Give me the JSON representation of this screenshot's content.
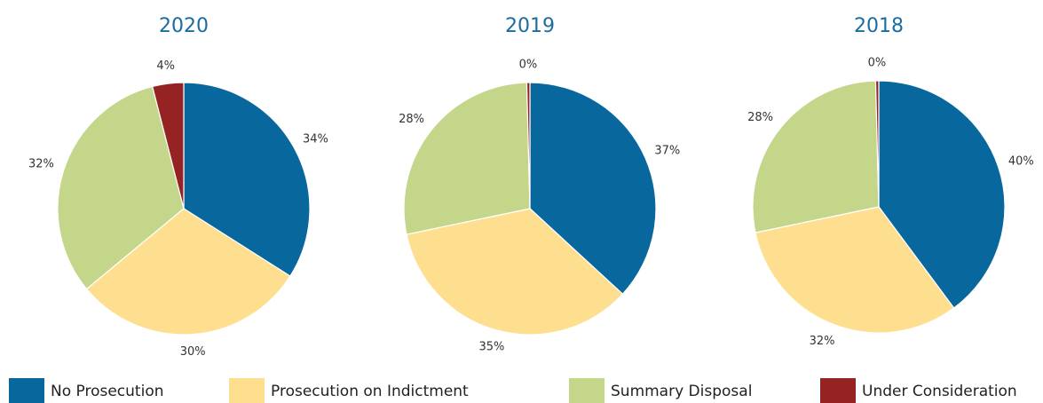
{
  "chart_data": [
    {
      "type": "pie",
      "title": "2020",
      "categories": [
        "No Prosecution",
        "Prosecution on Indictment",
        "Summary Disposal",
        "Under Consideration"
      ],
      "values": [
        34,
        30,
        32,
        4
      ],
      "value_labels": [
        "34%",
        "30%",
        "32%",
        "4%"
      ],
      "colors": [
        "#08679c",
        "#fddf8f",
        "#c3d68a",
        "#962323"
      ]
    },
    {
      "type": "pie",
      "title": "2019",
      "categories": [
        "No Prosecution",
        "Prosecution on Indictment",
        "Summary Disposal",
        "Under Consideration"
      ],
      "values": [
        37,
        35,
        28,
        0.4
      ],
      "value_labels": [
        "37%",
        "35%",
        "28%",
        "0%"
      ],
      "colors": [
        "#08679c",
        "#fddf8f",
        "#c3d68a",
        "#962323"
      ]
    },
    {
      "type": "pie",
      "title": "2018",
      "categories": [
        "No Prosecution",
        "Prosecution on Indictment",
        "Summary Disposal",
        "Under Consideration"
      ],
      "values": [
        40,
        32,
        28,
        0.4
      ],
      "value_labels": [
        "40%",
        "32%",
        "28%",
        "0%"
      ],
      "colors": [
        "#08679c",
        "#fddf8f",
        "#c3d68a",
        "#962323"
      ]
    }
  ]
}
